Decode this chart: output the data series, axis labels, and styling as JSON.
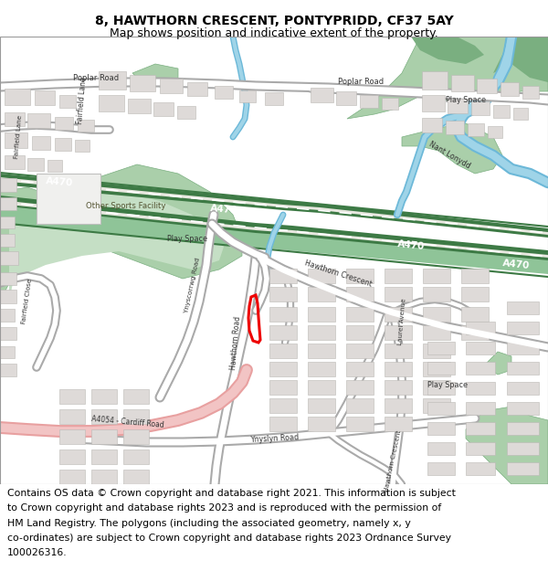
{
  "title_line1": "8, HAWTHORN CRESCENT, PONTYPRIDD, CF37 5AY",
  "title_line2": "Map shows position and indicative extent of the property.",
  "footer_lines": [
    "Contains OS data © Crown copyright and database right 2021. This information is subject",
    "to Crown copyright and database rights 2023 and is reproduced with the permission of",
    "HM Land Registry. The polygons (including the associated geometry, namely x, y",
    "co-ordinates) are subject to Crown copyright and database rights 2023 Ordnance Survey",
    "100026316."
  ],
  "title_fontsize": 10.0,
  "subtitle_fontsize": 9.0,
  "footer_fontsize": 7.8,
  "bg_map_color": "#f2f0eb",
  "road_major_dark": "#3d7a45",
  "road_major_mid": "#5a9e62",
  "road_major_light": "#8fc498",
  "road_minor_fill": "#ffffff",
  "road_minor_border": "#bbbbbb",
  "road_residential_fill": "#ffffff",
  "road_residential_border": "#c8c8c8",
  "park_dark": "#7aaf80",
  "park_light": "#aacfaa",
  "water_color": "#9fd4e8",
  "water_dark": "#6cb8d8",
  "building_fill": "#dedad8",
  "building_border": "#bbb8b5",
  "pink_road_fill": "#f2c4c4",
  "pink_road_border": "#e8a0a0",
  "red_outline": "#ee0000",
  "white": "#ffffff",
  "map_border": "#999999",
  "label_dark": "#333333",
  "label_road": "#555533"
}
